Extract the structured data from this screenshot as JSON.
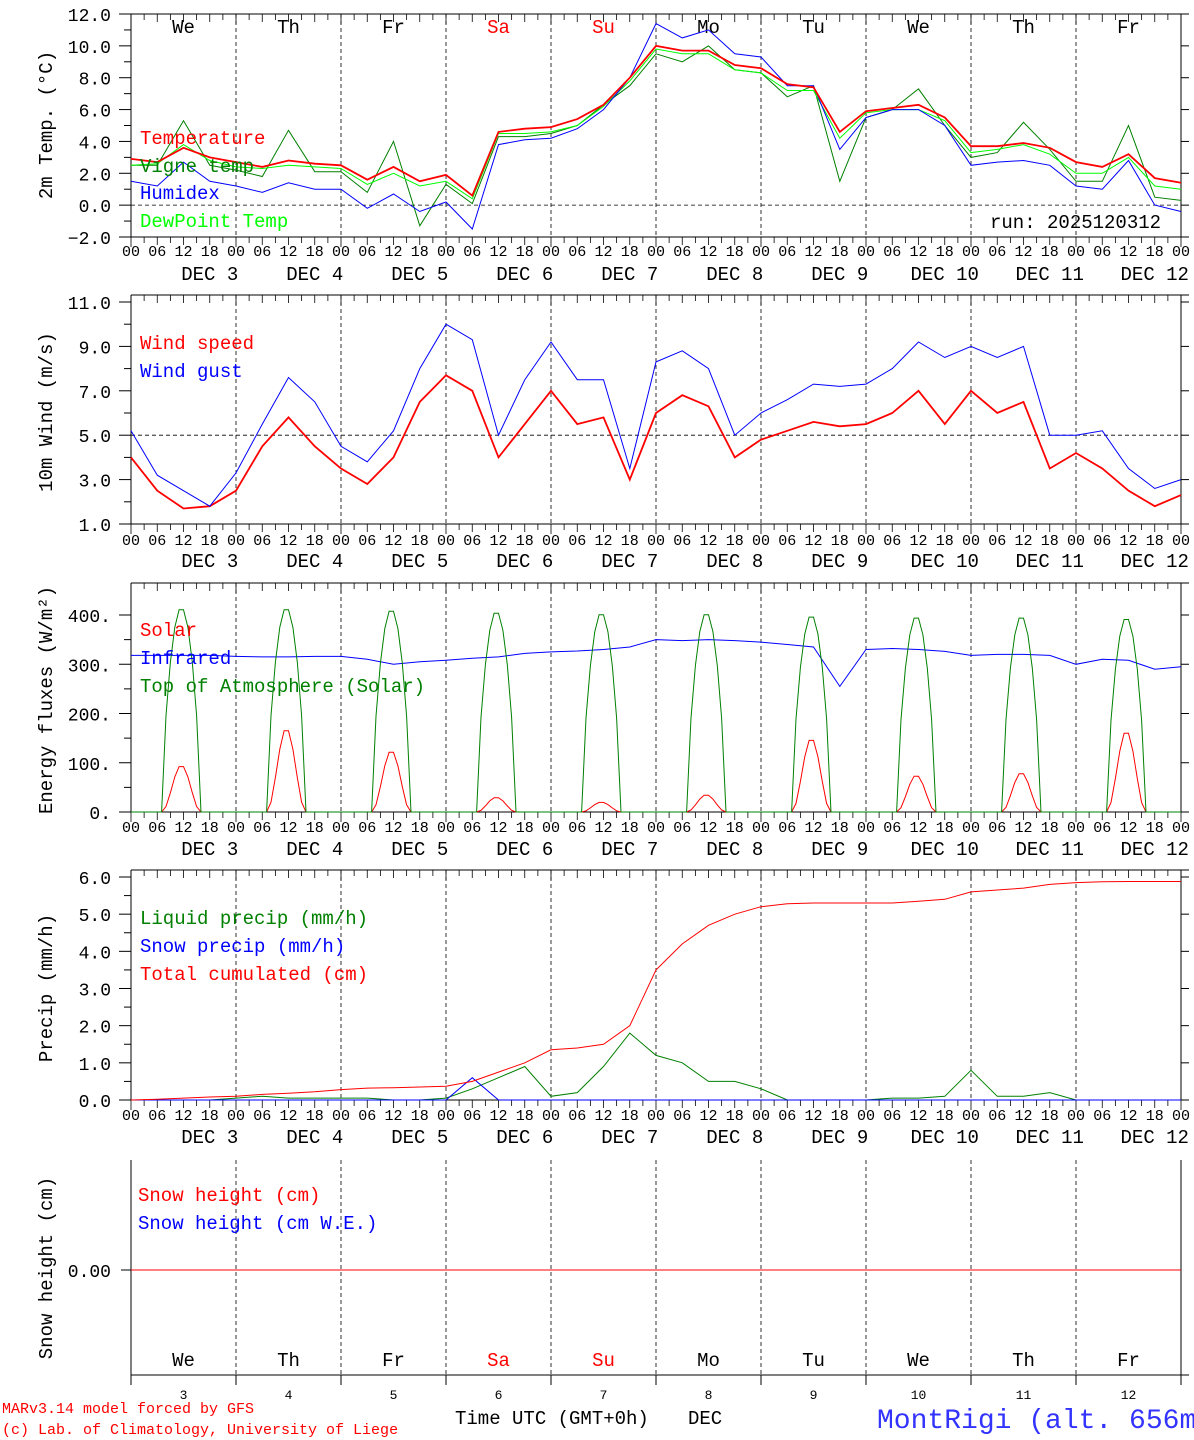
{
  "chart_data": [
    {
      "type": "line",
      "ylabel": "2m Temp. (°C)",
      "ylim": [
        -2,
        12
      ],
      "yticks": [
        "12.0",
        "10.0",
        "8.0",
        "6.0",
        "4.0",
        "2.0",
        "0.0",
        "−2.0"
      ],
      "ytick_values": [
        12,
        10,
        8,
        6,
        4,
        2,
        0,
        -2
      ],
      "ref_line": 0,
      "annotation": "run: 2025120312",
      "day_names": [
        "We",
        "Th",
        "Fr",
        "Sa",
        "Su",
        "Mo",
        "Tu",
        "We",
        "Th",
        "Fr"
      ],
      "series": [
        {
          "name": "Temperature",
          "color": "#ff0000",
          "values": [
            2.9,
            2.7,
            3.6,
            3.0,
            2.7,
            2.4,
            2.8,
            2.6,
            2.5,
            1.6,
            2.4,
            1.5,
            1.9,
            0.6,
            4.6,
            4.8,
            4.9,
            5.4,
            6.3,
            8.0,
            10.0,
            9.7,
            9.7,
            8.8,
            8.6,
            7.6,
            7.4,
            4.6,
            5.9,
            6.1,
            6.3,
            5.5,
            3.7,
            3.7,
            3.9,
            3.6,
            2.7,
            2.4,
            3.2,
            1.7,
            1.4
          ]
        },
        {
          "name": "Vigne temp",
          "color": "#008000",
          "values": [
            2.5,
            2.5,
            5.3,
            2.5,
            2.2,
            1.8,
            4.7,
            2.1,
            2.1,
            0.8,
            4.0,
            -1.3,
            1.3,
            0.1,
            4.3,
            4.3,
            4.5,
            5.0,
            6.3,
            7.5,
            9.5,
            9.0,
            10.0,
            8.5,
            8.3,
            6.8,
            7.5,
            1.5,
            5.5,
            6.0,
            7.3,
            5.0,
            3.0,
            3.3,
            5.2,
            3.5,
            1.5,
            1.5,
            5.0,
            0.5,
            0.3
          ]
        },
        {
          "name": "Humidex",
          "color": "#0000ff",
          "values": [
            1.5,
            1.2,
            2.7,
            1.5,
            1.2,
            0.8,
            1.4,
            1.0,
            1.0,
            -0.2,
            0.7,
            -0.4,
            0.2,
            -1.5,
            3.8,
            4.1,
            4.2,
            4.8,
            6.0,
            8.0,
            11.4,
            10.5,
            11.0,
            9.5,
            9.3,
            7.5,
            7.5,
            3.5,
            5.5,
            6.0,
            6.0,
            5.0,
            2.5,
            2.7,
            2.8,
            2.5,
            1.2,
            1.0,
            2.8,
            0.0,
            -0.4
          ]
        },
        {
          "name": "DewPoint Temp",
          "color": "#00ff00",
          "values": [
            2.5,
            2.6,
            3.8,
            2.8,
            2.4,
            2.3,
            2.5,
            2.4,
            2.3,
            1.3,
            2.0,
            1.2,
            1.5,
            0.4,
            4.5,
            4.5,
            4.6,
            5.0,
            6.2,
            7.8,
            9.8,
            9.5,
            9.5,
            8.5,
            8.3,
            7.2,
            7.2,
            4.2,
            5.8,
            6.0,
            6.0,
            5.3,
            3.3,
            3.5,
            3.8,
            3.2,
            2.0,
            2.0,
            3.0,
            1.2,
            1.0
          ]
        }
      ]
    },
    {
      "type": "line",
      "ylabel": "10m Wind (m/s)",
      "ylim": [
        1,
        11
      ],
      "yticks": [
        "11.0",
        "9.0",
        "7.0",
        "5.0",
        "3.0",
        "1.0"
      ],
      "ytick_values": [
        11,
        9,
        7,
        5,
        3,
        1
      ],
      "ref_line": 5,
      "series": [
        {
          "name": "Wind speed",
          "color": "#ff0000",
          "values": [
            4.0,
            2.5,
            1.7,
            1.8,
            2.5,
            4.5,
            5.8,
            4.5,
            3.5,
            2.8,
            4.0,
            6.5,
            7.7,
            7.0,
            4.0,
            5.5,
            7.0,
            5.5,
            5.8,
            3.0,
            6.0,
            6.8,
            6.3,
            4.0,
            4.8,
            5.2,
            5.6,
            5.4,
            5.5,
            6.0,
            7.0,
            5.5,
            7.0,
            6.0,
            6.5,
            3.5,
            4.2,
            3.5,
            2.5,
            1.8,
            2.3
          ]
        },
        {
          "name": "Wind gust",
          "color": "#0000ff",
          "values": [
            5.2,
            3.2,
            2.5,
            1.8,
            3.3,
            5.5,
            7.6,
            6.5,
            4.5,
            3.8,
            5.2,
            8.0,
            10.0,
            9.3,
            5.0,
            7.5,
            9.2,
            7.5,
            7.5,
            3.5,
            8.3,
            8.8,
            8.0,
            5.0,
            6.0,
            6.6,
            7.3,
            7.2,
            7.3,
            8.0,
            9.2,
            8.5,
            9.0,
            8.5,
            9.0,
            5.0,
            5.0,
            5.2,
            3.5,
            2.6,
            3.0
          ]
        }
      ]
    },
    {
      "type": "line",
      "ylabel": "Energy fluxes (W/m²)",
      "ylim": [
        0,
        400
      ],
      "yticks": [
        "400.",
        "300.",
        "200.",
        "100.",
        "0."
      ],
      "ytick_values": [
        400,
        300,
        200,
        100,
        0
      ],
      "daily_peaks": {
        "Solar": [
          95,
          170,
          125,
          30,
          20,
          35,
          150,
          75,
          80,
          165
        ],
        "Top of Atmosphere (Solar)": [
          415,
          415,
          412,
          408,
          405,
          405,
          400,
          398,
          398,
          395
        ]
      },
      "series": [
        {
          "name": "Solar",
          "color": "#ff0000"
        },
        {
          "name": "Infrared",
          "color": "#0000ff",
          "values": [
            318,
            318,
            318,
            318,
            316,
            315,
            315,
            316,
            316,
            310,
            300,
            305,
            308,
            312,
            315,
            322,
            325,
            327,
            330,
            335,
            350,
            348,
            350,
            348,
            345,
            340,
            335,
            255,
            330,
            332,
            330,
            326,
            318,
            320,
            320,
            318,
            300,
            310,
            308,
            290,
            295
          ]
        },
        {
          "name": "Top of Atmosphere (Solar)",
          "color": "#008000"
        }
      ]
    },
    {
      "type": "line",
      "ylabel": "Precip (mm/h)",
      "ylim": [
        0,
        6
      ],
      "yticks": [
        "6.0",
        "5.0",
        "4.0",
        "3.0",
        "2.0",
        "1.0",
        "0.0"
      ],
      "ytick_values": [
        6,
        5,
        4,
        3,
        2,
        1,
        0
      ],
      "series": [
        {
          "name": "Liquid precip (mm/h)",
          "color": "#008000",
          "values": [
            0,
            0,
            0,
            0,
            0.05,
            0.1,
            0.05,
            0.05,
            0.05,
            0.05,
            0,
            0,
            0.05,
            0.3,
            0.6,
            0.9,
            0.1,
            0.2,
            0.9,
            1.8,
            1.2,
            1.0,
            0.5,
            0.5,
            0.3,
            0,
            0,
            0,
            0,
            0.05,
            0.05,
            0.1,
            0.8,
            0.1,
            0.1,
            0.2,
            0,
            0,
            0,
            0,
            0
          ]
        },
        {
          "name": "Snow precip (mm/h)",
          "color": "#0000ff",
          "values": [
            0,
            0,
            0,
            0,
            0,
            0,
            0,
            0,
            0,
            0,
            0,
            0,
            0,
            0.6,
            0,
            0,
            0,
            0,
            0,
            0,
            0,
            0,
            0,
            0,
            0,
            0,
            0,
            0,
            0,
            0,
            0,
            0,
            0,
            0,
            0,
            0,
            0,
            0,
            0,
            0,
            0
          ]
        },
        {
          "name": "Total cumulated (cm)",
          "color": "#ff0000",
          "values": [
            0,
            0.02,
            0.05,
            0.08,
            0.1,
            0.15,
            0.18,
            0.22,
            0.28,
            0.32,
            0.33,
            0.35,
            0.37,
            0.5,
            0.75,
            1.0,
            1.35,
            1.4,
            1.5,
            2.0,
            3.5,
            4.2,
            4.7,
            5.0,
            5.2,
            5.28,
            5.3,
            5.3,
            5.3,
            5.3,
            5.35,
            5.4,
            5.6,
            5.65,
            5.7,
            5.8,
            5.85,
            5.87,
            5.88,
            5.88,
            5.88
          ]
        }
      ]
    },
    {
      "type": "line",
      "ylabel": "Snow height (cm)",
      "yticks": [
        "0.00"
      ],
      "series": [
        {
          "name": "Snow height (cm)",
          "color": "#ff0000",
          "values": [
            0,
            0
          ]
        },
        {
          "name": "Snow height (cm W.E.)",
          "color": "#0000ff"
        }
      ]
    }
  ],
  "x_axis": {
    "hour_labels": [
      "00",
      "06",
      "12",
      "18"
    ],
    "days": [
      "DEC  3",
      "DEC  4",
      "DEC  5",
      "DEC  6",
      "DEC  7",
      "DEC  8",
      "DEC  9",
      "DEC 10",
      "DEC 11",
      "DEC 12"
    ],
    "day_numbers": [
      "3",
      "4",
      "5",
      "6",
      "7",
      "8",
      "9",
      "10",
      "11",
      "12"
    ],
    "weekend_color": "#ff0000",
    "title": "Time UTC (GMT+0h)",
    "month": "DEC"
  },
  "footer": {
    "model": "MARv3.14 model forced by GFS",
    "credit": "(c) Lab. of Climatology, University of Liege",
    "station": "MontRigi (alt. 656m)"
  }
}
